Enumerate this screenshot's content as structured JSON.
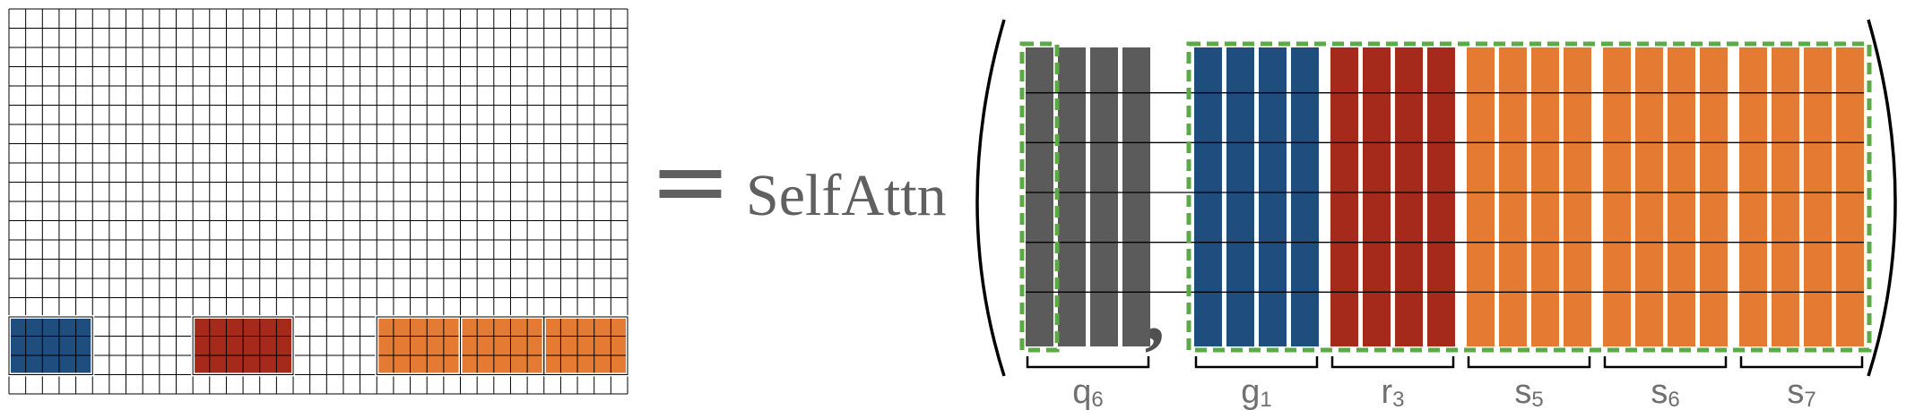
{
  "equation": {
    "equals_sign": "=",
    "operator_label": "SelfAttn",
    "separator": ","
  },
  "grid": {
    "columns": 37,
    "rows": 20,
    "highlighted_row_band": {
      "first_row": 16,
      "row_count": 3
    },
    "blocks": [
      {
        "label": "blue",
        "color": "#1f4e7e",
        "first_col": 0,
        "col_count": 5
      },
      {
        "label": "red",
        "color": "#a52a1c",
        "first_col": 11,
        "col_count": 6
      },
      {
        "label": "orange",
        "color": "#e57a32",
        "first_col": 22,
        "col_count": 5
      },
      {
        "label": "orange",
        "color": "#e57a32",
        "first_col": 27,
        "col_count": 5
      },
      {
        "label": "orange",
        "color": "#e57a32",
        "first_col": 32,
        "col_count": 5
      }
    ]
  },
  "sequence": {
    "row_lines": 5,
    "groups": [
      {
        "base": "q",
        "sub": "6",
        "color": "#5b5b5b",
        "bars": 4
      },
      {
        "base": "g",
        "sub": "1",
        "color": "#1f4e7e",
        "bars": 4
      },
      {
        "base": "r",
        "sub": "3",
        "color": "#a52a1c",
        "bars": 4
      },
      {
        "base": "s",
        "sub": "5",
        "color": "#e57a32",
        "bars": 4
      },
      {
        "base": "s",
        "sub": "6",
        "color": "#e57a32",
        "bars": 4
      },
      {
        "base": "s",
        "sub": "7",
        "color": "#e57a32",
        "bars": 4
      }
    ],
    "query_box_color": "#5aaa46",
    "key_box_color": "#5aaa46"
  },
  "colors": {
    "text_gray": "#606060",
    "label_gray": "#707070",
    "grid_line": "#000000"
  }
}
